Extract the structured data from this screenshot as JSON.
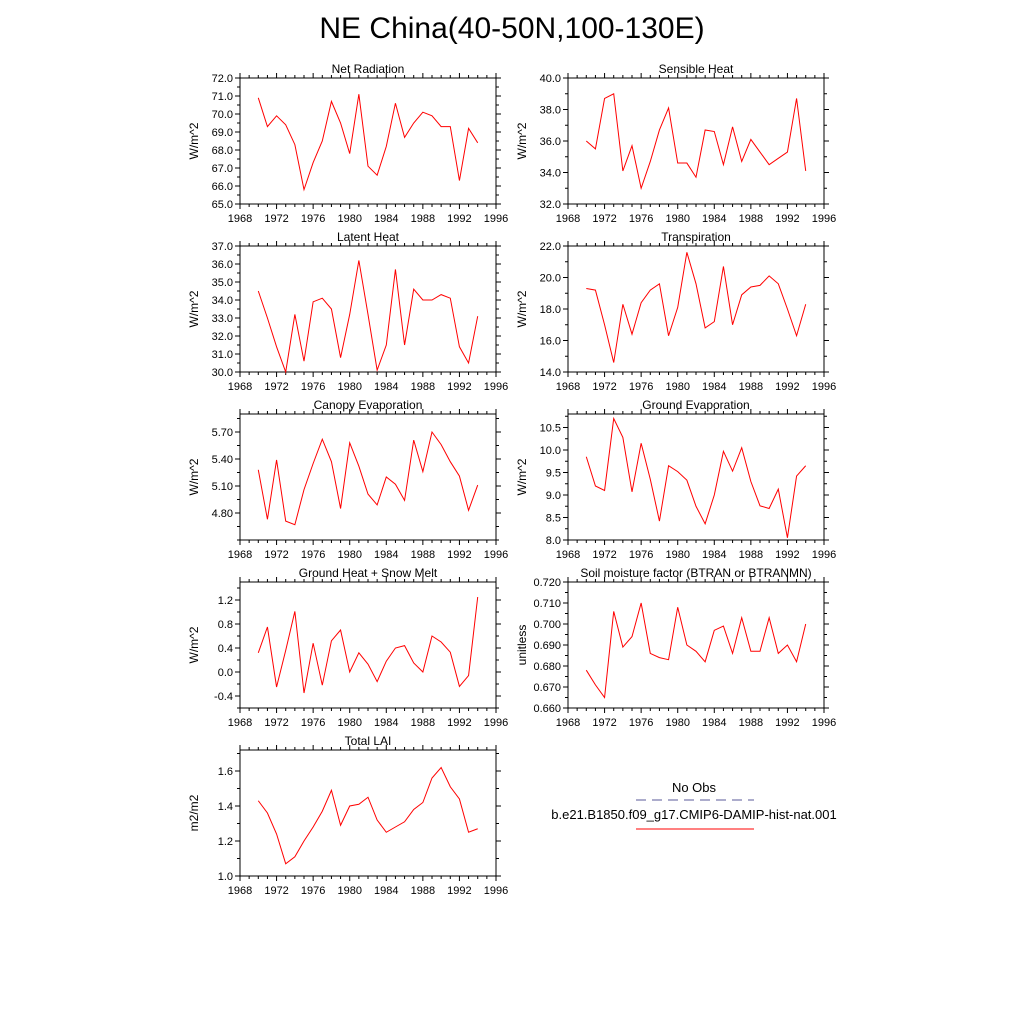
{
  "title": "NE China(40-50N,100-130E)",
  "line_color": "#ff0000",
  "obs_color": "#5a5a9a",
  "legend": {
    "no_obs_label": "No Obs",
    "model_label": "b.e21.B1850.f09_g17.CMIP6-DAMIP-hist-nat.001"
  },
  "chart_data": [
    {
      "type": "line",
      "title": "Net Radiation",
      "ylabel": "W/m^2",
      "xlim": [
        1968,
        1996
      ],
      "ylim": [
        65.0,
        72.0
      ],
      "xticks": [
        1968,
        1972,
        1976,
        1980,
        1984,
        1988,
        1992,
        1996
      ],
      "yticks": [
        "65.0",
        "66.0",
        "67.0",
        "68.0",
        "69.0",
        "70.0",
        "71.0",
        "72.0"
      ],
      "x": [
        1970,
        1971,
        1972,
        1973,
        1974,
        1975,
        1976,
        1977,
        1978,
        1979,
        1980,
        1981,
        1982,
        1983,
        1984,
        1985,
        1986,
        1987,
        1988,
        1989,
        1990,
        1991,
        1992,
        1993,
        1994
      ],
      "series": [
        {
          "values": [
            70.9,
            69.3,
            69.9,
            69.4,
            68.3,
            65.8,
            67.3,
            68.5,
            70.7,
            69.5,
            67.8,
            71.1,
            67.1,
            66.6,
            68.2,
            70.6,
            68.7,
            69.5,
            70.1,
            69.9,
            69.3,
            69.3,
            66.3,
            69.2,
            68.4
          ]
        }
      ]
    },
    {
      "type": "line",
      "title": "Sensible Heat",
      "ylabel": "W/m^2",
      "xlim": [
        1968,
        1996
      ],
      "ylim": [
        32.0,
        40.0
      ],
      "xticks": [
        1968,
        1972,
        1976,
        1980,
        1984,
        1988,
        1992,
        1996
      ],
      "yticks": [
        "32.0",
        "34.0",
        "36.0",
        "38.0",
        "40.0"
      ],
      "x": [
        1970,
        1971,
        1972,
        1973,
        1974,
        1975,
        1976,
        1977,
        1978,
        1979,
        1980,
        1981,
        1982,
        1983,
        1984,
        1985,
        1986,
        1987,
        1988,
        1989,
        1990,
        1991,
        1992,
        1993,
        1994
      ],
      "series": [
        {
          "values": [
            36.0,
            35.5,
            38.7,
            39.0,
            34.1,
            35.7,
            33.0,
            34.7,
            36.7,
            38.1,
            34.6,
            34.6,
            33.7,
            36.7,
            36.6,
            34.5,
            36.9,
            34.7,
            36.1,
            35.3,
            34.5,
            34.9,
            35.3,
            38.7,
            34.1
          ]
        }
      ]
    },
    {
      "type": "line",
      "title": "Latent Heat",
      "ylabel": "W/m^2",
      "xlim": [
        1968,
        1996
      ],
      "ylim": [
        30.0,
        37.0
      ],
      "xticks": [
        1968,
        1972,
        1976,
        1980,
        1984,
        1988,
        1992,
        1996
      ],
      "yticks": [
        "30.0",
        "31.0",
        "32.0",
        "33.0",
        "34.0",
        "35.0",
        "36.0",
        "37.0"
      ],
      "x": [
        1970,
        1971,
        1972,
        1973,
        1974,
        1975,
        1976,
        1977,
        1978,
        1979,
        1980,
        1981,
        1982,
        1983,
        1984,
        1985,
        1986,
        1987,
        1988,
        1989,
        1990,
        1991,
        1992,
        1993,
        1994
      ],
      "series": [
        {
          "values": [
            34.5,
            33.0,
            31.4,
            30.0,
            33.2,
            30.6,
            33.9,
            34.1,
            33.5,
            30.8,
            33.2,
            36.2,
            33.2,
            30.1,
            31.5,
            35.7,
            31.5,
            34.6,
            34.0,
            34.0,
            34.3,
            34.1,
            31.4,
            30.5,
            33.1
          ]
        }
      ]
    },
    {
      "type": "line",
      "title": "Transpiration",
      "ylabel": "W/m^2",
      "xlim": [
        1968,
        1996
      ],
      "ylim": [
        14.0,
        22.0
      ],
      "xticks": [
        1968,
        1972,
        1976,
        1980,
        1984,
        1988,
        1992,
        1996
      ],
      "yticks": [
        "14.0",
        "16.0",
        "18.0",
        "20.0",
        "22.0"
      ],
      "x": [
        1970,
        1971,
        1972,
        1973,
        1974,
        1975,
        1976,
        1977,
        1978,
        1979,
        1980,
        1981,
        1982,
        1983,
        1984,
        1985,
        1986,
        1987,
        1988,
        1989,
        1990,
        1991,
        1992,
        1993,
        1994
      ],
      "series": [
        {
          "values": [
            19.3,
            19.2,
            17.0,
            14.6,
            18.3,
            16.4,
            18.4,
            19.2,
            19.6,
            16.3,
            18.1,
            21.6,
            19.6,
            16.8,
            17.2,
            20.7,
            17.0,
            18.9,
            19.4,
            19.5,
            20.1,
            19.6,
            18.0,
            16.3,
            18.3
          ]
        }
      ]
    },
    {
      "type": "line",
      "title": "Canopy Evaporation",
      "ylabel": "W/m^2",
      "xlim": [
        1968,
        1996
      ],
      "ylim": [
        4.5,
        5.9
      ],
      "xticks": [
        1968,
        1972,
        1976,
        1980,
        1984,
        1988,
        1992,
        1996
      ],
      "yticks": [
        "4.80",
        "5.10",
        "5.40",
        "5.70"
      ],
      "x": [
        1970,
        1971,
        1972,
        1973,
        1974,
        1975,
        1976,
        1977,
        1978,
        1979,
        1980,
        1981,
        1982,
        1983,
        1984,
        1985,
        1986,
        1987,
        1988,
        1989,
        1990,
        1991,
        1992,
        1993,
        1994
      ],
      "series": [
        {
          "values": [
            5.28,
            4.73,
            5.39,
            4.71,
            4.67,
            5.06,
            5.35,
            5.62,
            5.37,
            4.85,
            5.58,
            5.32,
            5.01,
            4.89,
            5.2,
            5.12,
            4.94,
            5.61,
            5.26,
            5.7,
            5.56,
            5.37,
            5.21,
            4.83,
            5.11
          ]
        }
      ]
    },
    {
      "type": "line",
      "title": "Ground Evaporation",
      "ylabel": "W/m^2",
      "xlim": [
        1968,
        1996
      ],
      "ylim": [
        8.0,
        10.8
      ],
      "xticks": [
        1968,
        1972,
        1976,
        1980,
        1984,
        1988,
        1992,
        1996
      ],
      "yticks": [
        "8.0",
        "8.5",
        "9.0",
        "9.5",
        "10.0",
        "10.5"
      ],
      "x": [
        1970,
        1971,
        1972,
        1973,
        1974,
        1975,
        1976,
        1977,
        1978,
        1979,
        1980,
        1981,
        1982,
        1983,
        1984,
        1985,
        1986,
        1987,
        1988,
        1989,
        1990,
        1991,
        1992,
        1993,
        1994
      ],
      "series": [
        {
          "values": [
            9.85,
            9.2,
            9.1,
            10.7,
            10.28,
            9.07,
            10.15,
            9.35,
            8.42,
            9.65,
            9.52,
            9.33,
            8.75,
            8.36,
            9.0,
            9.97,
            9.53,
            10.05,
            9.3,
            8.76,
            8.7,
            9.13,
            8.05,
            9.42,
            9.65
          ]
        }
      ]
    },
    {
      "type": "line",
      "title": "Ground Heat + Snow Melt",
      "ylabel": "W/m^2",
      "xlim": [
        1968,
        1996
      ],
      "ylim": [
        -0.6,
        1.5
      ],
      "xticks": [
        1968,
        1972,
        1976,
        1980,
        1984,
        1988,
        1992,
        1996
      ],
      "yticks": [
        "-0.4",
        "0.0",
        "0.4",
        "0.8",
        "1.2"
      ],
      "x": [
        1970,
        1971,
        1972,
        1973,
        1974,
        1975,
        1976,
        1977,
        1978,
        1979,
        1980,
        1981,
        1982,
        1983,
        1984,
        1985,
        1986,
        1987,
        1988,
        1989,
        1990,
        1991,
        1992,
        1993,
        1994
      ],
      "series": [
        {
          "values": [
            0.32,
            0.75,
            -0.25,
            0.36,
            1.01,
            -0.35,
            0.48,
            -0.22,
            0.52,
            0.7,
            0.0,
            0.32,
            0.13,
            -0.16,
            0.18,
            0.4,
            0.44,
            0.15,
            0.0,
            0.6,
            0.5,
            0.33,
            -0.24,
            -0.06,
            1.25
          ]
        }
      ]
    },
    {
      "type": "line",
      "title": "Soil moisture factor (BTRAN or BTRANMN)",
      "ylabel": "unitless",
      "xlim": [
        1968,
        1996
      ],
      "ylim": [
        0.66,
        0.72
      ],
      "xticks": [
        1968,
        1972,
        1976,
        1980,
        1984,
        1988,
        1992,
        1996
      ],
      "yticks": [
        "0.660",
        "0.670",
        "0.680",
        "0.690",
        "0.700",
        "0.710",
        "0.720"
      ],
      "x": [
        1970,
        1971,
        1972,
        1973,
        1974,
        1975,
        1976,
        1977,
        1978,
        1979,
        1980,
        1981,
        1982,
        1983,
        1984,
        1985,
        1986,
        1987,
        1988,
        1989,
        1990,
        1991,
        1992,
        1993,
        1994
      ],
      "series": [
        {
          "values": [
            0.678,
            0.671,
            0.665,
            0.706,
            0.689,
            0.694,
            0.71,
            0.686,
            0.684,
            0.683,
            0.708,
            0.69,
            0.687,
            0.682,
            0.697,
            0.699,
            0.686,
            0.703,
            0.687,
            0.687,
            0.703,
            0.686,
            0.69,
            0.682,
            0.7
          ]
        }
      ]
    },
    {
      "type": "line",
      "title": "Total LAI",
      "ylabel": "m2/m2",
      "xlim": [
        1968,
        1996
      ],
      "ylim": [
        1.0,
        1.72
      ],
      "xticks": [
        1968,
        1972,
        1976,
        1980,
        1984,
        1988,
        1992,
        1996
      ],
      "yticks": [
        "1.0",
        "1.2",
        "1.4",
        "1.6"
      ],
      "x": [
        1970,
        1971,
        1972,
        1973,
        1974,
        1975,
        1976,
        1977,
        1978,
        1979,
        1980,
        1981,
        1982,
        1983,
        1984,
        1985,
        1986,
        1987,
        1988,
        1989,
        1990,
        1991,
        1992,
        1993,
        1994
      ],
      "series": [
        {
          "values": [
            1.43,
            1.36,
            1.24,
            1.07,
            1.11,
            1.2,
            1.28,
            1.37,
            1.49,
            1.29,
            1.4,
            1.41,
            1.45,
            1.32,
            1.25,
            1.28,
            1.31,
            1.38,
            1.42,
            1.56,
            1.62,
            1.51,
            1.44,
            1.25,
            1.27
          ]
        }
      ]
    }
  ]
}
